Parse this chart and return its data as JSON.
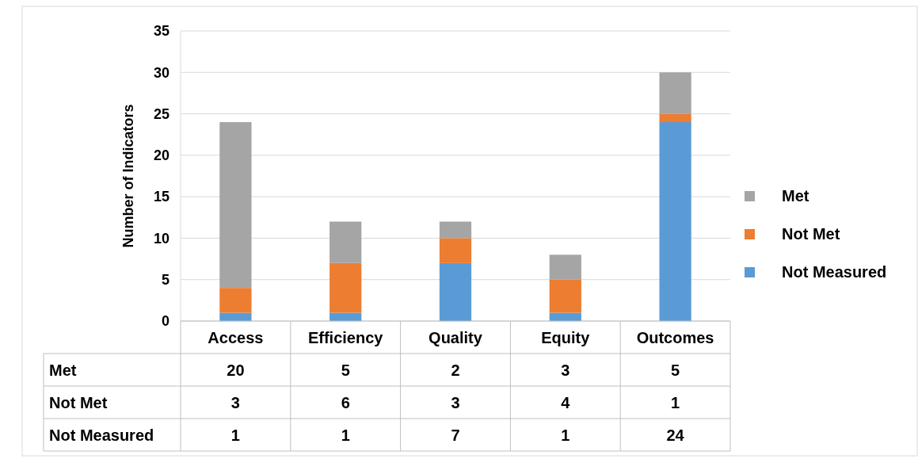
{
  "chart_data": {
    "type": "bar",
    "stacked": true,
    "ylabel": "Number of Indicators",
    "categories": [
      "Access",
      "Efficiency",
      "Quality",
      "Equity",
      "Outcomes"
    ],
    "series": [
      {
        "name": "Not Measured",
        "color": "#5b9bd5",
        "values": [
          1,
          1,
          7,
          1,
          24
        ]
      },
      {
        "name": "Not Met",
        "color": "#ed7d31",
        "values": [
          3,
          6,
          3,
          4,
          1
        ]
      },
      {
        "name": "Met",
        "color": "#a5a5a5",
        "values": [
          20,
          5,
          2,
          3,
          5
        ]
      }
    ],
    "ylim": [
      0,
      35
    ],
    "yticks": [
      0,
      5,
      10,
      15,
      20,
      25,
      30,
      35
    ],
    "grid": "y",
    "legend": "right",
    "data_labels": true
  }
}
